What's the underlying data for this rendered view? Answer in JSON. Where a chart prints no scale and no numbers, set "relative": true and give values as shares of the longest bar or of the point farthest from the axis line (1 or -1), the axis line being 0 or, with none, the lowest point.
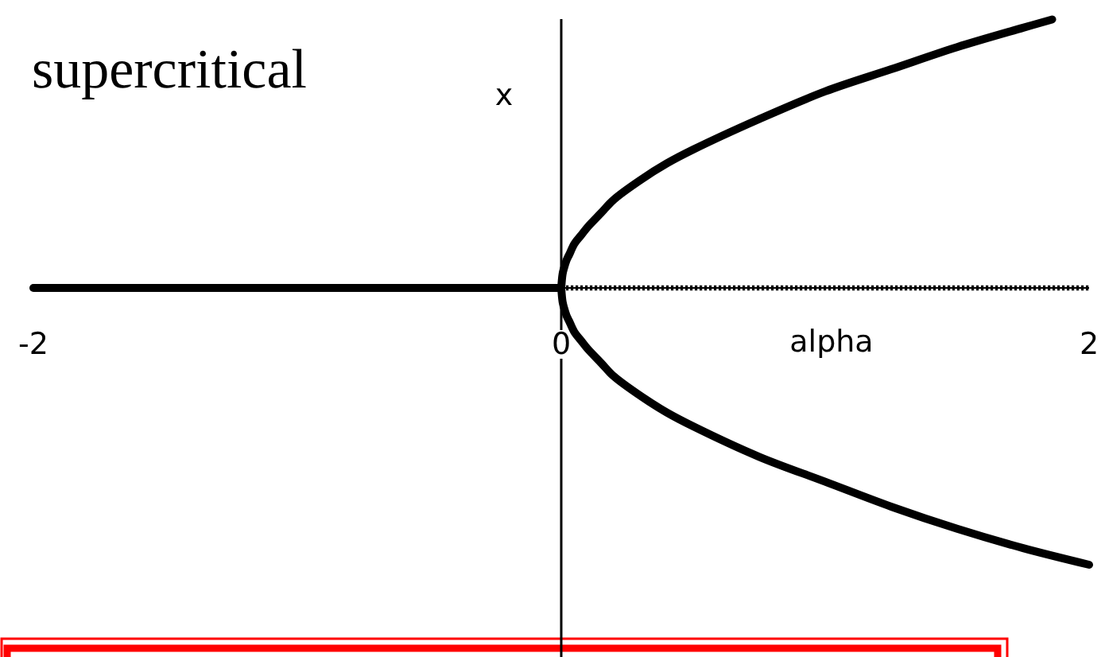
{
  "chart_data": {
    "type": "line",
    "title": "supercritical",
    "xlabel": "alpha",
    "ylabel": "x",
    "xlim": [
      -2,
      2
    ],
    "xticks": [
      -2,
      0,
      2
    ],
    "relative": true,
    "series": [
      {
        "color": "#000000",
        "line_style": "solid",
        "x": [
          -2,
          0
        ],
        "values": [
          0,
          0
        ]
      },
      {
        "color": "#000000",
        "line_style": "dotted",
        "x": [
          0,
          2
        ],
        "values": [
          0,
          0
        ]
      },
      {
        "color": "#000000",
        "line_style": "solid",
        "x": [
          0,
          0.005,
          0.01,
          0.02,
          0.03,
          0.05,
          0.075,
          0.1,
          0.15,
          0.2,
          0.3,
          0.4,
          0.5,
          0.75,
          1,
          1.25,
          1.5,
          1.75,
          1.86
        ],
        "values": [
          0,
          0.05,
          0.07,
          0.1,
          0.12,
          0.16,
          0.19,
          0.22,
          0.27,
          0.32,
          0.39,
          0.45,
          0.5,
          0.61,
          0.71,
          0.79,
          0.87,
          0.94,
          0.97
        ]
      },
      {
        "color": "#000000",
        "line_style": "solid",
        "x": [
          0,
          0.005,
          0.01,
          0.02,
          0.03,
          0.05,
          0.075,
          0.1,
          0.15,
          0.2,
          0.3,
          0.4,
          0.5,
          0.75,
          1,
          1.25,
          1.5,
          1.75,
          2
        ],
        "values": [
          0,
          -0.05,
          -0.07,
          -0.1,
          -0.12,
          -0.16,
          -0.19,
          -0.22,
          -0.27,
          -0.32,
          -0.39,
          -0.45,
          -0.5,
          -0.61,
          -0.7,
          -0.79,
          -0.87,
          -0.94,
          -1
        ]
      }
    ]
  }
}
